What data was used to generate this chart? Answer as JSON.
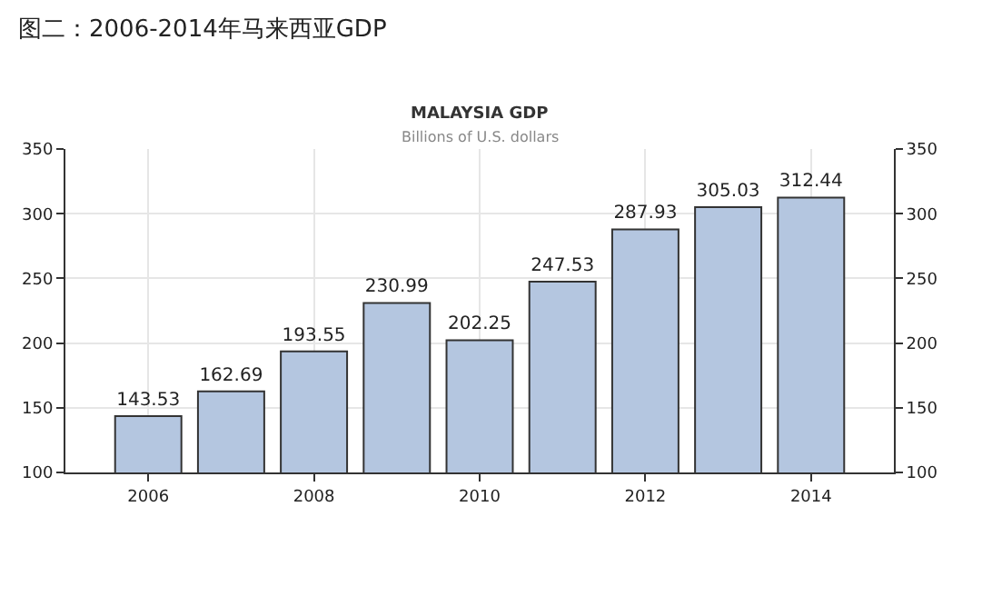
{
  "chart_data": {
    "type": "bar",
    "title": "MALAYSIA GDP",
    "subtitle": "Billions of U.S. dollars",
    "annotations": [
      "图二：2006-2014年马来西亚GDP"
    ],
    "x": [
      2006,
      2007,
      2008,
      2009,
      2010,
      2011,
      2012,
      2013,
      2014
    ],
    "values": [
      143.53,
      162.69,
      193.55,
      230.99,
      202.25,
      247.53,
      287.93,
      305.03,
      312.44
    ],
    "color": "#b4c6e0",
    "data_labels": true,
    "xlim": [
      2005,
      2015
    ],
    "xticks": [
      2006,
      2008,
      2010,
      2012,
      2014
    ],
    "ylim": [
      100,
      350
    ],
    "yticks": [
      100,
      150,
      200,
      250,
      300,
      350
    ],
    "y2lim": [
      100,
      350
    ],
    "y2ticks": [
      100,
      150,
      200,
      250,
      300,
      350
    ],
    "grid": true
  }
}
